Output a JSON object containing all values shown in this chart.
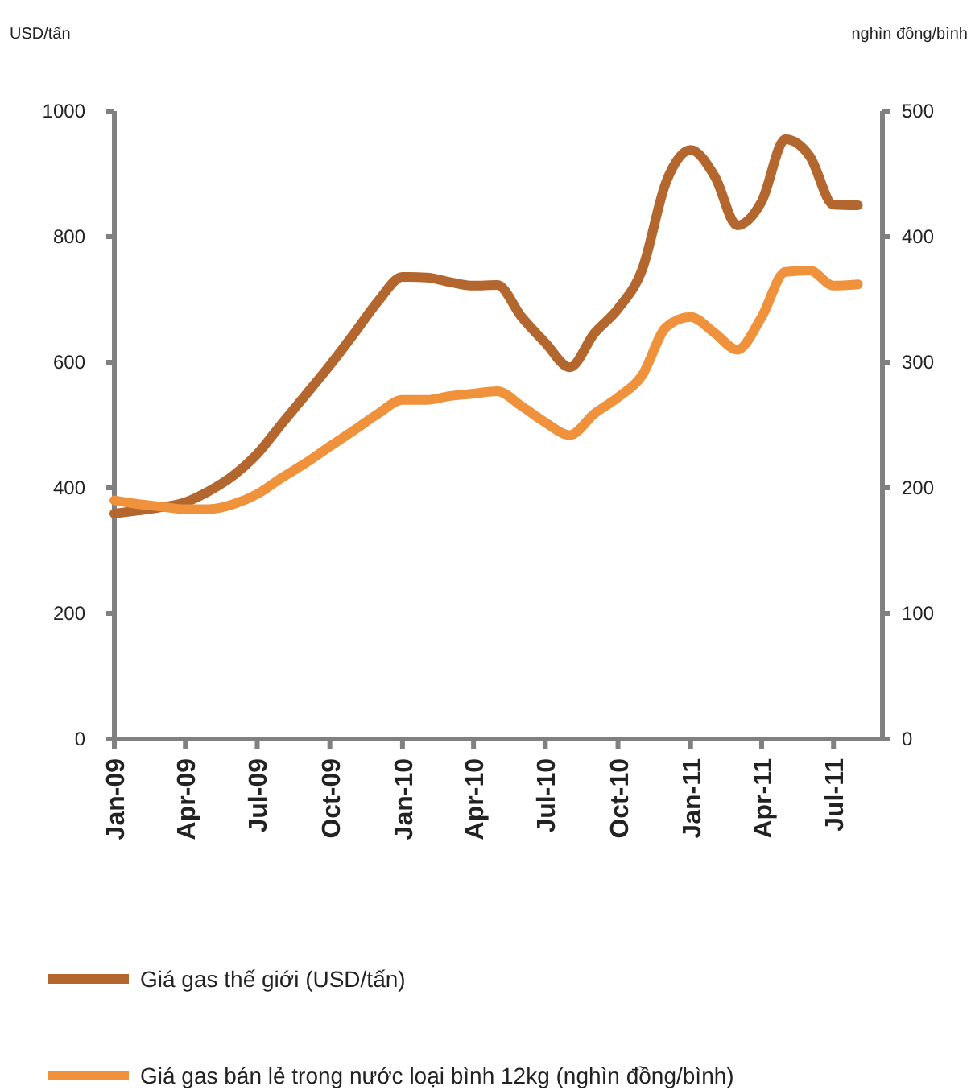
{
  "chart_data": {
    "type": "line",
    "ylabel": "USD/tấn",
    "y2label": "nghìn đồng/bình",
    "x": [
      "2009-01",
      "2009-02",
      "2009-03",
      "2009-04",
      "2009-05",
      "2009-06",
      "2009-07",
      "2009-08",
      "2009-09",
      "2009-10",
      "2009-11",
      "2009-12",
      "2010-01",
      "2010-02",
      "2010-03",
      "2010-04",
      "2010-05",
      "2010-06",
      "2010-07",
      "2010-08",
      "2010-09",
      "2010-10",
      "2010-11",
      "2010-12",
      "2011-01",
      "2011-02",
      "2011-03",
      "2011-04",
      "2011-05",
      "2011-06",
      "2011-07",
      "2011-08"
    ],
    "series": [
      {
        "name": "Giá gas thế giới (USD/tấn)",
        "color": "#b3672e",
        "values": [
          359,
          364,
          369,
          377,
          395,
          420,
          454,
          502,
          549,
          595,
          646,
          697,
          736,
          735,
          728,
          722,
          723,
          672,
          631,
          592,
          646,
          685,
          749,
          887,
          938,
          895,
          818,
          856,
          955,
          928,
          851,
          850
        ]
      },
      {
        "name": "Giá gas bán lẻ trong nước loại bình 12kg (nghìn đồng/bình)",
        "color": "#f0913c",
        "axis": "y2",
        "values": [
          190,
          187,
          185,
          183,
          183,
          187,
          195,
          208,
          220,
          233,
          246,
          259,
          270,
          270,
          273,
          275,
          277,
          265,
          252,
          242,
          259,
          272,
          290,
          328,
          336,
          323,
          310,
          336,
          372,
          373,
          361,
          362
        ]
      }
    ],
    "xlim": [
      "2009-01",
      "2011-09"
    ],
    "xticks": [
      {
        "value": "2009-01",
        "label": "Jan-09"
      },
      {
        "value": "2009-04",
        "label": "Apr-09"
      },
      {
        "value": "2009-07",
        "label": "Jul-09"
      },
      {
        "value": "2009-10",
        "label": "Oct-09"
      },
      {
        "value": "2010-01",
        "label": "Jan-10"
      },
      {
        "value": "2010-04",
        "label": "Apr-10"
      },
      {
        "value": "2010-07",
        "label": "Jul-10"
      },
      {
        "value": "2010-10",
        "label": "Oct-10"
      },
      {
        "value": "2011-01",
        "label": "Jan-11"
      },
      {
        "value": "2011-04",
        "label": "Apr-11"
      },
      {
        "value": "2011-07",
        "label": "Jul-11"
      }
    ],
    "ylim": [
      0,
      1000
    ],
    "yticks": [
      0,
      200,
      400,
      600,
      800,
      1000
    ],
    "y2lim": [
      0,
      500
    ],
    "y2ticks": [
      0,
      100,
      200,
      300,
      400,
      500
    ],
    "grid": false,
    "legend": "bottom",
    "marker": "none",
    "line_style": "solid"
  }
}
